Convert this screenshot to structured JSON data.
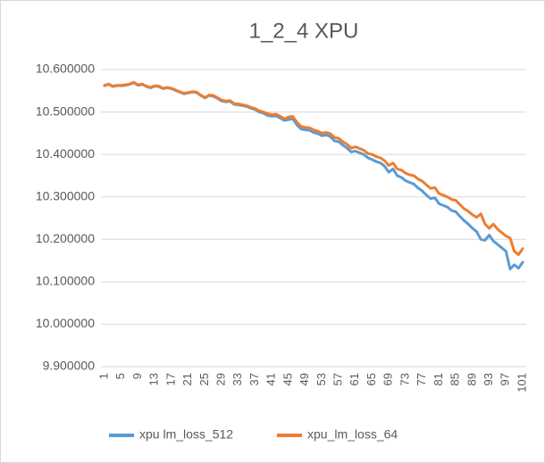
{
  "chart_data": {
    "type": "line",
    "title": "1_2_4 XPU",
    "categories": [
      1,
      null,
      null,
      null,
      5,
      null,
      null,
      null,
      9,
      null,
      null,
      null,
      13,
      null,
      null,
      null,
      17,
      null,
      null,
      null,
      21,
      null,
      null,
      null,
      25,
      null,
      null,
      null,
      29,
      null,
      null,
      null,
      33,
      null,
      null,
      null,
      37,
      null,
      null,
      null,
      41,
      null,
      null,
      null,
      45,
      null,
      null,
      null,
      49,
      null,
      null,
      null,
      53,
      null,
      null,
      null,
      57,
      null,
      null,
      null,
      61,
      null,
      null,
      null,
      65,
      null,
      null,
      null,
      69,
      null,
      null,
      null,
      73,
      null,
      null,
      null,
      77,
      null,
      null,
      null,
      81,
      null,
      null,
      null,
      85,
      null,
      null,
      null,
      89,
      null,
      null,
      null,
      93,
      null,
      null,
      null,
      97,
      null,
      null,
      null,
      101
    ],
    "series": [
      {
        "name": "xpu lm_loss_512",
        "color": "#5b9bd5",
        "values": [
          10.562,
          10.566,
          10.561,
          10.563,
          10.562,
          10.563,
          10.565,
          10.569,
          10.563,
          10.565,
          10.561,
          10.557,
          10.561,
          10.56,
          10.555,
          10.557,
          10.555,
          10.551,
          10.547,
          10.543,
          10.545,
          10.547,
          10.546,
          10.539,
          10.533,
          10.539,
          10.537,
          10.532,
          10.526,
          10.524,
          10.525,
          10.518,
          10.517,
          10.515,
          10.513,
          10.509,
          10.506,
          10.5,
          10.497,
          10.492,
          10.49,
          10.491,
          10.486,
          10.48,
          10.482,
          10.484,
          10.47,
          10.46,
          10.458,
          10.457,
          10.452,
          10.449,
          10.444,
          10.446,
          10.442,
          10.432,
          10.43,
          10.422,
          10.415,
          10.406,
          10.408,
          10.404,
          10.4,
          10.392,
          10.388,
          10.383,
          10.38,
          10.372,
          10.358,
          10.366,
          10.35,
          10.346,
          10.338,
          10.334,
          10.33,
          10.321,
          10.314,
          10.304,
          10.296,
          10.298,
          10.284,
          10.28,
          10.276,
          10.268,
          10.265,
          10.254,
          10.244,
          10.236,
          10.226,
          10.218,
          10.2,
          10.198,
          10.21,
          10.196,
          10.188,
          10.18,
          10.172,
          10.13,
          10.14,
          10.132,
          10.146
        ]
      },
      {
        "name": "xpu_lm_loss_64",
        "color": "#ed7d31",
        "values": [
          10.563,
          10.565,
          10.56,
          10.562,
          10.563,
          10.564,
          10.566,
          10.57,
          10.564,
          10.566,
          10.56,
          10.558,
          10.562,
          10.561,
          10.556,
          10.558,
          10.556,
          10.552,
          10.548,
          10.544,
          10.546,
          10.548,
          10.547,
          10.54,
          10.534,
          10.54,
          10.539,
          10.534,
          10.528,
          10.526,
          10.527,
          10.52,
          10.519,
          10.517,
          10.515,
          10.511,
          10.508,
          10.503,
          10.5,
          10.496,
          10.494,
          10.495,
          10.49,
          10.484,
          10.488,
          10.49,
          10.476,
          10.466,
          10.464,
          10.463,
          10.458,
          10.455,
          10.45,
          10.452,
          10.449,
          10.44,
          10.438,
          10.43,
          10.424,
          10.415,
          10.418,
          10.414,
          10.41,
          10.402,
          10.4,
          10.395,
          10.392,
          10.385,
          10.374,
          10.38,
          10.366,
          10.363,
          10.356,
          10.352,
          10.35,
          10.342,
          10.337,
          10.328,
          10.32,
          10.322,
          10.308,
          10.304,
          10.3,
          10.294,
          10.292,
          10.282,
          10.272,
          10.266,
          10.258,
          10.252,
          10.26,
          10.236,
          10.226,
          10.236,
          10.224,
          10.216,
          10.208,
          10.203,
          10.172,
          10.164,
          10.178
        ]
      }
    ],
    "ylim": [
      9.9,
      10.6
    ],
    "yticks": [
      {
        "value": 9.9,
        "label": "9.900000"
      },
      {
        "value": 10.0,
        "label": "10.000000"
      },
      {
        "value": 10.1,
        "label": "10.100000"
      },
      {
        "value": 10.2,
        "label": "10.200000"
      },
      {
        "value": 10.3,
        "label": "10.300000"
      },
      {
        "value": 10.4,
        "label": "10.400000"
      },
      {
        "value": 10.5,
        "label": "10.500000"
      },
      {
        "value": 10.6,
        "label": "10.600000"
      }
    ],
    "grid": true,
    "legend": "bottom"
  }
}
